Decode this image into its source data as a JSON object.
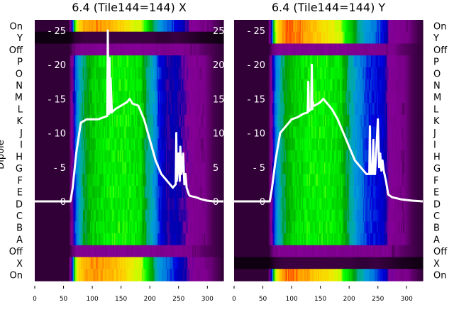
{
  "chart_data": [
    {
      "type": "heatmap",
      "title": "6.4 (Tile144=144) X",
      "ylabel": "Dipole",
      "row_labels": [
        "On",
        "Y",
        "Off",
        "P",
        "O",
        "N",
        "M",
        "L",
        "K",
        "J",
        "I",
        "H",
        "G",
        "F",
        "E",
        "D",
        "C",
        "B",
        "A",
        "Off",
        "X",
        "On"
      ],
      "row_kinds": [
        "on",
        "black",
        "off",
        "n",
        "n",
        "n",
        "n",
        "n",
        "n",
        "n",
        "n",
        "n",
        "n",
        "n",
        "n",
        "n",
        "n",
        "n",
        "n",
        "off",
        "on",
        "on"
      ],
      "xlim": [
        0,
        328
      ],
      "xticks": [
        "0",
        "50",
        "100",
        "150",
        "200",
        "250",
        "300"
      ],
      "overlay_yticks": [
        "0",
        "5",
        "10",
        "15",
        "20",
        "25"
      ],
      "overlay_ylim": [
        -11.6,
        26.6
      ],
      "intensity_profile": {
        "x": [
          0,
          60,
          66,
          70,
          76,
          85,
          100,
          130,
          160,
          185,
          195,
          205,
          215,
          230,
          245,
          260,
          270,
          290,
          310,
          328
        ],
        "normal": [
          0.02,
          0.02,
          0.1,
          0.22,
          0.3,
          0.42,
          0.52,
          0.58,
          0.58,
          0.55,
          0.4,
          0.33,
          0.22,
          0.14,
          0.16,
          0.12,
          0.09,
          0.06,
          0.03,
          0.02
        ],
        "on": [
          0.02,
          0.02,
          0.2,
          0.6,
          0.72,
          0.78,
          0.8,
          0.78,
          0.72,
          0.66,
          0.58,
          0.45,
          0.3,
          0.25,
          0.2,
          0.15,
          0.1,
          0.07,
          0.04,
          0.02
        ],
        "off": [
          0.02,
          0.02,
          0.04,
          0.06,
          0.07,
          0.08,
          0.08,
          0.08,
          0.08,
          0.08,
          0.08,
          0.08,
          0.07,
          0.07,
          0.08,
          0.07,
          0.06,
          0.04,
          0.03,
          0.02
        ]
      },
      "line": {
        "x": [
          0,
          62,
          66,
          72,
          80,
          90,
          100,
          110,
          120,
          126,
          127,
          128,
          129,
          130,
          131,
          132,
          134,
          136,
          140,
          150,
          160,
          165,
          170,
          180,
          185,
          190,
          200,
          210,
          220,
          230,
          240,
          245,
          246,
          247,
          250,
          252,
          253,
          255,
          258,
          260,
          262,
          264,
          266,
          268,
          270,
          280,
          290,
          300,
          310,
          328
        ],
        "y": [
          0,
          0,
          2,
          7,
          11.5,
          12,
          12,
          12,
          12.3,
          12.5,
          25,
          13,
          12.8,
          21,
          13,
          18,
          13,
          13.2,
          13.5,
          14,
          14.5,
          15,
          14.3,
          14,
          13,
          12,
          9,
          6,
          4,
          3,
          2,
          2.5,
          10,
          3,
          7,
          3,
          8,
          4,
          7,
          2.5,
          4,
          2,
          1.5,
          1,
          0.8,
          0.6,
          0.3,
          0.1,
          0,
          0
        ]
      }
    },
    {
      "type": "heatmap",
      "title": "6.4 (Tile144=144) Y",
      "row_labels": [
        "On",
        "Y",
        "Off",
        "P",
        "O",
        "N",
        "M",
        "L",
        "K",
        "J",
        "I",
        "H",
        "G",
        "F",
        "E",
        "D",
        "C",
        "B",
        "A",
        "Off",
        "X",
        "On"
      ],
      "row_kinds": [
        "on",
        "on",
        "off",
        "n",
        "n",
        "n",
        "n",
        "n",
        "n",
        "n",
        "n",
        "n",
        "n",
        "n",
        "n",
        "n",
        "n",
        "n",
        "n",
        "off",
        "black",
        "on"
      ],
      "xlim": [
        0,
        328
      ],
      "xticks": [
        "0",
        "50",
        "100",
        "150",
        "200",
        "250",
        "300"
      ],
      "overlay_yticks": [
        "0",
        "5",
        "10",
        "15",
        "20",
        "25"
      ],
      "overlay_ylim": [
        -11.6,
        26.6
      ],
      "intensity_profile": {
        "x": [
          0,
          60,
          66,
          70,
          76,
          85,
          100,
          130,
          160,
          185,
          195,
          205,
          215,
          230,
          245,
          260,
          270,
          290,
          310,
          328
        ],
        "normal": [
          0.02,
          0.02,
          0.1,
          0.22,
          0.3,
          0.42,
          0.52,
          0.58,
          0.58,
          0.55,
          0.45,
          0.35,
          0.28,
          0.22,
          0.2,
          0.18,
          0.09,
          0.06,
          0.03,
          0.02
        ],
        "on": [
          0.02,
          0.02,
          0.2,
          0.6,
          0.72,
          0.8,
          0.82,
          0.78,
          0.72,
          0.66,
          0.58,
          0.5,
          0.4,
          0.3,
          0.25,
          0.2,
          0.1,
          0.07,
          0.04,
          0.02
        ],
        "off": [
          0.02,
          0.02,
          0.04,
          0.06,
          0.07,
          0.08,
          0.08,
          0.08,
          0.08,
          0.08,
          0.08,
          0.08,
          0.07,
          0.07,
          0.08,
          0.07,
          0.06,
          0.04,
          0.03,
          0.02
        ]
      },
      "line": {
        "x": [
          0,
          62,
          66,
          72,
          80,
          90,
          100,
          110,
          120,
          128,
          129,
          130,
          134,
          135,
          136,
          137,
          138,
          140,
          150,
          155,
          160,
          170,
          180,
          190,
          200,
          210,
          220,
          230,
          235,
          236,
          237,
          240,
          242,
          243,
          245,
          250,
          252,
          254,
          256,
          258,
          260,
          264,
          268,
          275,
          290,
          310,
          328
        ],
        "y": [
          0,
          0,
          2,
          6,
          10,
          11,
          12,
          12.3,
          12.8,
          13,
          17.5,
          13.2,
          13.5,
          20,
          13.5,
          14.5,
          14,
          14,
          14.5,
          15,
          14.5,
          13.5,
          12,
          10,
          8,
          6,
          5,
          4,
          4,
          11,
          4,
          4,
          9,
          4,
          4,
          12,
          5,
          7,
          4.5,
          6,
          4.5,
          3,
          1,
          0.6,
          0.3,
          0.1,
          0
        ]
      }
    }
  ]
}
